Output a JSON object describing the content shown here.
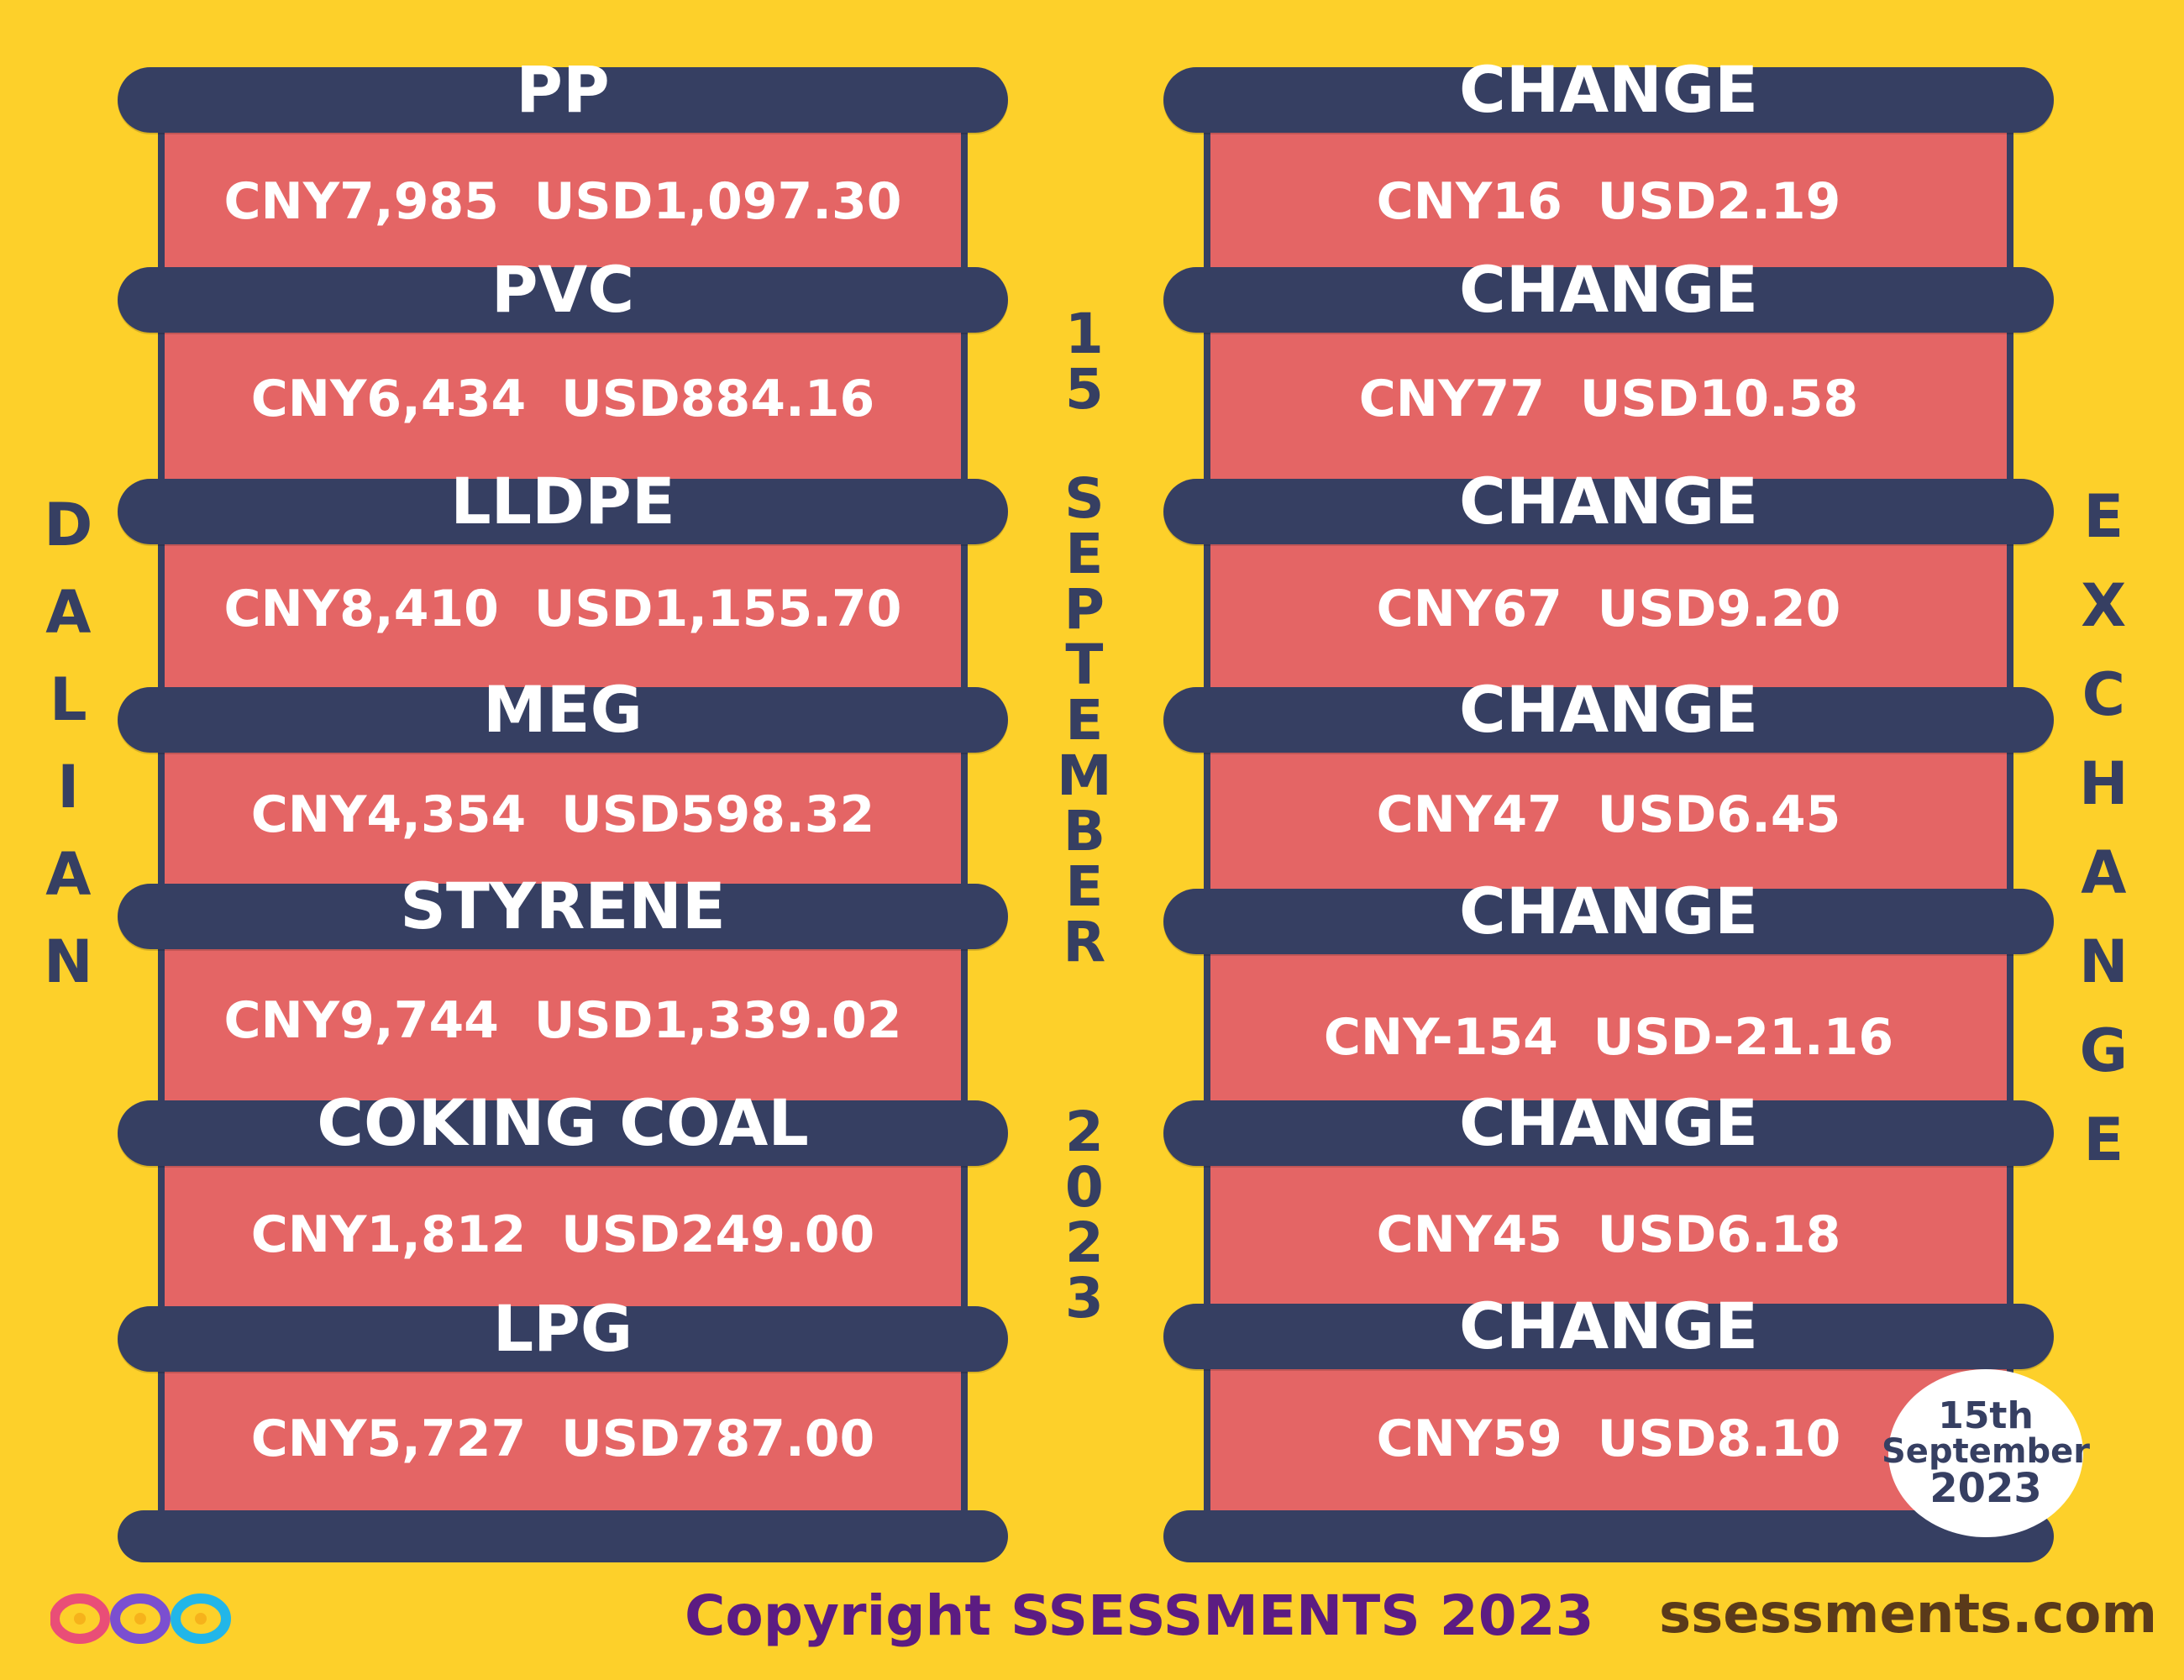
{
  "left_title": "DALIAN",
  "right_title": "EXCHANGE",
  "date_vertical": {
    "day": "15",
    "month": "SEPTEMBER",
    "year": "2023"
  },
  "commodities": [
    {
      "name": "PP",
      "price": "CNY7,985  USD1,097.30",
      "change_label": "CHANGE",
      "change": "CNY16  USD2.19"
    },
    {
      "name": "PVC",
      "price": "CNY6,434  USD884.16",
      "change_label": "CHANGE",
      "change": "CNY77  USD10.58"
    },
    {
      "name": "LLDPE",
      "price": "CNY8,410  USD1,155.70",
      "change_label": "CHANGE",
      "change": "CNY67  USD9.20"
    },
    {
      "name": "MEG",
      "price": "CNY4,354  USD598.32",
      "change_label": "CHANGE",
      "change": "CNY47  USD6.45"
    },
    {
      "name": "STYRENE",
      "price": "CNY9,744  USD1,339.02",
      "change_label": "CHANGE",
      "change": "CNY-154  USD-21.16"
    },
    {
      "name": "COKING COAL",
      "price": "CNY1,812  USD249.00",
      "change_label": "CHANGE",
      "change": "CNY45  USD6.18"
    },
    {
      "name": "LPG",
      "price": "CNY5,727  USD787.00",
      "change_label": "CHANGE",
      "change": "CNY59  USD8.10"
    }
  ],
  "badge": {
    "line1": "15th",
    "line2": "September",
    "line3": "2023"
  },
  "footer": {
    "copyright": "Copyright SSESSMENTS 2023",
    "url": "ssessments.com"
  },
  "colors": {
    "background": "#FDD02A",
    "bar": "#363F62",
    "panel": "#E46565",
    "copyright": "#5C1C82"
  }
}
